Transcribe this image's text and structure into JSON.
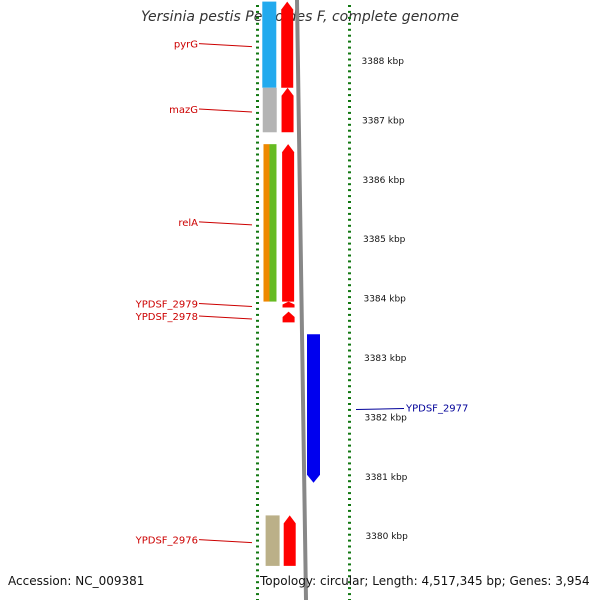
{
  "title": "Yersinia pestis Pestoides F, complete genome",
  "footer": {
    "accession": "Accession: NC_009381",
    "summary": "Topology: circular; Length: 4,517,345 bp; Genes: 3,954"
  },
  "colors": {
    "label_red": "#cc0000",
    "label_blue": "#000099",
    "backbone": "#888888",
    "tick": "#117711",
    "forward_gene": "#ff0000",
    "reverse_gene": "#0000ee"
  },
  "scale": {
    "unit": "kbp",
    "ticks": [
      {
        "value": 3388,
        "label": "3388 kbp"
      },
      {
        "value": 3387,
        "label": "3387 kbp"
      },
      {
        "value": 3386,
        "label": "3386 kbp"
      },
      {
        "value": 3385,
        "label": "3385 kbp"
      },
      {
        "value": 3384,
        "label": "3384 kbp"
      },
      {
        "value": 3383,
        "label": "3383 kbp"
      },
      {
        "value": 3382,
        "label": "3382 kbp"
      },
      {
        "value": 3381,
        "label": "3381 kbp"
      },
      {
        "value": 3380,
        "label": "3380 kbp"
      }
    ]
  },
  "genes": [
    {
      "name": "pyrG",
      "strand": "+",
      "start_kbp": 3387.55,
      "end_kbp": 3389.0,
      "cog_color": "#22aaee",
      "label_side": "left"
    },
    {
      "name": "mazG",
      "strand": "+",
      "start_kbp": 3386.8,
      "end_kbp": 3387.55,
      "cog_color": "#b4b4b4",
      "label_side": "left"
    },
    {
      "name": "relA",
      "strand": "+",
      "start_kbp": 3383.95,
      "end_kbp": 3386.6,
      "cog_color": "#ee8800",
      "cog_color2": "#66bb22",
      "label_side": "left"
    },
    {
      "name": "YPDSF_2979",
      "strand": "+",
      "start_kbp": 3383.85,
      "end_kbp": 3383.95,
      "label_side": "left"
    },
    {
      "name": "YPDSF_2978",
      "strand": "+",
      "start_kbp": 3383.6,
      "end_kbp": 3383.78,
      "label_side": "left"
    },
    {
      "name": "YPDSF_2977",
      "strand": "-",
      "start_kbp": 3380.9,
      "end_kbp": 3383.4,
      "label_side": "right"
    },
    {
      "name": "YPDSF_2976",
      "strand": "+",
      "start_kbp": 3379.5,
      "end_kbp": 3380.35,
      "cog_color": "#bbb088",
      "label_side": "left"
    }
  ]
}
